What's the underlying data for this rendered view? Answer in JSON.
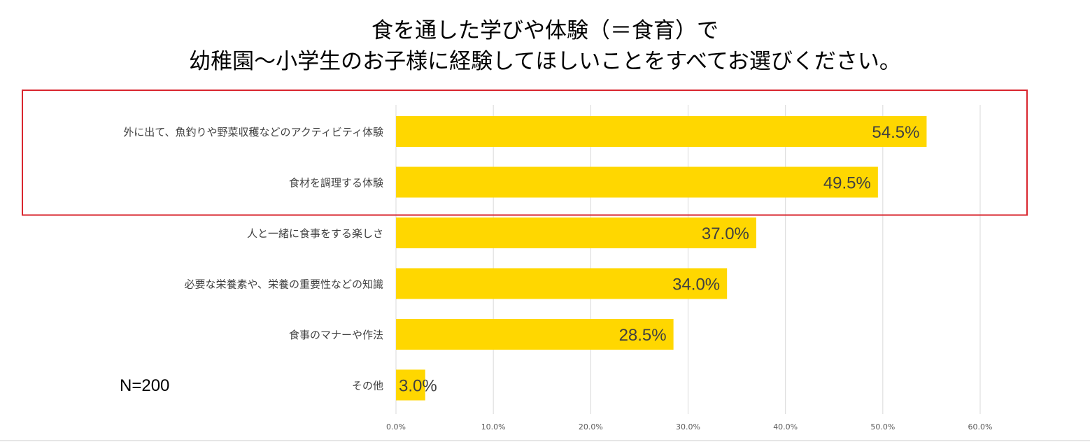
{
  "title": {
    "line1": "食を通した学びや体験（＝食育）で",
    "line2": "幼稚園～小学生のお子様に経験してほしいことをすべてお選びください。"
  },
  "sample_size": "N=200",
  "colors": {
    "bar": "#FFD700",
    "grid": "#d9d9d9",
    "highlight_box": "#d9262e",
    "category_text": "#404040",
    "value_text": "#404040",
    "tick_text": "#595959"
  },
  "chart_data": {
    "type": "bar",
    "orientation": "horizontal",
    "categories": [
      "外に出て、魚釣りや野菜収穫などのアクティビティ体験",
      "食材を調理する体験",
      "人と一緒に食事をする楽しさ",
      "必要な栄養素や、栄養の重要性などの知識",
      "食事のマナーや作法",
      "その他"
    ],
    "values": [
      54.5,
      49.5,
      37.0,
      34.0,
      28.5,
      3.0
    ],
    "value_labels": [
      "54.5%",
      "49.5%",
      "37.0%",
      "34.0%",
      "28.5%",
      "3.0%"
    ],
    "xlim": [
      0,
      60
    ],
    "x_ticks": [
      0,
      10,
      20,
      30,
      40,
      50,
      60
    ],
    "x_tick_labels": [
      "0.0%",
      "10.0%",
      "20.0%",
      "30.0%",
      "40.0%",
      "50.0%",
      "60.0%"
    ],
    "grid": true,
    "highlighted_categories": [
      0,
      1
    ]
  }
}
